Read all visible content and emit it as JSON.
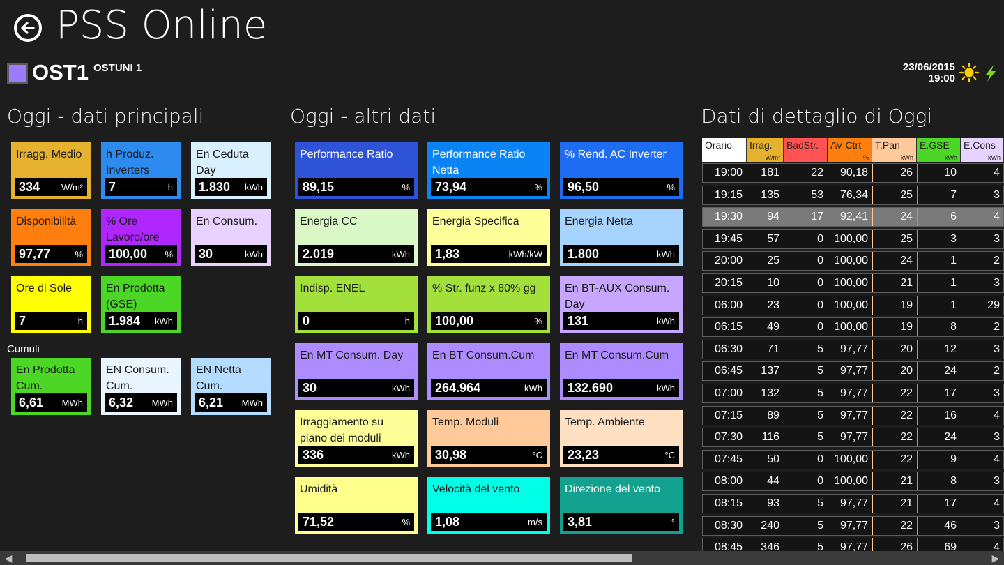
{
  "app": {
    "title": "PSS Online"
  },
  "site": {
    "code": "OST1",
    "name": "OSTUNI 1",
    "color": "#9b7cff"
  },
  "status": {
    "date": "23/06/2015",
    "time": "19:00",
    "weather_icon": "sun-icon",
    "power_icon": "bolt-icon"
  },
  "sections": {
    "main": "Oggi - dati principali",
    "other": "Oggi - altri dati",
    "detail": "Dati di dettaglio di Oggi",
    "cumuli": "Cumuli"
  },
  "main_tiles": [
    {
      "label": "Irragg. Medio",
      "value": "334",
      "unit": "W/m²",
      "color": "#e6b12e"
    },
    {
      "label": "h Produz. Inverters",
      "value": "7",
      "unit": "h",
      "color": "#2d8bf0"
    },
    {
      "label": "En Ceduta Day",
      "value": "1.830",
      "unit": "kWh",
      "color": "#d9f0ff"
    },
    {
      "label": "Disponibilità",
      "value": "97,77",
      "unit": "%",
      "color": "#ff7f0e"
    },
    {
      "label": "% Ore Lavoro/ore",
      "value": "100,00",
      "unit": "%",
      "color": "#b026ff"
    },
    {
      "label": "En Consum.",
      "value": "30",
      "unit": "kWh",
      "color": "#e8d2ff"
    },
    {
      "label": "Ore di Sole",
      "value": "7",
      "unit": "h",
      "color": "#ffff00"
    },
    {
      "label": "En Prodotta (GSE)",
      "value": "1.984",
      "unit": "kWh",
      "color": "#4cd626"
    }
  ],
  "cumuli_tiles": [
    {
      "label": "En Prodotta Cum.",
      "value": "6,61",
      "unit": "MWh",
      "color": "#4cd626"
    },
    {
      "label": "EN Consum. Cum.",
      "value": "6,32",
      "unit": "MWh",
      "color": "#e9f6ff"
    },
    {
      "label": "EN Netta Cum.",
      "value": "6,21",
      "unit": "MWh",
      "color": "#b3dcff"
    }
  ],
  "other_tiles": [
    {
      "label": "Performance Ratio",
      "value": "89,15",
      "unit": "%",
      "color": "#2f53d6",
      "dark": true
    },
    {
      "label": "Performance Ratio Netta",
      "value": "73,94",
      "unit": "%",
      "color": "#0a84f5",
      "dark": true
    },
    {
      "label": "% Rend. AC Inverter",
      "value": "96,50",
      "unit": "%",
      "color": "#1e6cf2",
      "dark": true
    },
    {
      "label": "Energia CC",
      "value": "2.019",
      "unit": "kWh",
      "color": "#daf7c6"
    },
    {
      "label": "Energia Specifica",
      "value": "1,83",
      "unit": "kWh/kW",
      "color": "#ffff99"
    },
    {
      "label": "Energia Netta",
      "value": "1.800",
      "unit": "kWh",
      "color": "#a7d4ff"
    },
    {
      "label": "Indisp. ENEL",
      "value": "0",
      "unit": "h",
      "color": "#a3e03c"
    },
    {
      "label": "% Str. funz x 80% gg",
      "value": "100,00",
      "unit": "%",
      "color": "#a3e03c"
    },
    {
      "label": "En BT-AUX Consum. Day",
      "value": "131",
      "unit": "kWh",
      "color": "#c7a6ff"
    },
    {
      "label": "En MT Consum. Day",
      "value": "30",
      "unit": "kWh",
      "color": "#ad8cff"
    },
    {
      "label": "En BT Consum.Cum",
      "value": "264.964",
      "unit": "kWh",
      "color": "#ad8cff"
    },
    {
      "label": "En MT Consum.Cum",
      "value": "132.690",
      "unit": "kWh",
      "color": "#ad8cff"
    },
    {
      "label": "Irraggiamento su piano dei moduli",
      "value": "336",
      "unit": "kWh",
      "color": "#ffff99"
    },
    {
      "label": "Temp. Moduli",
      "value": "30,98",
      "unit": "°C",
      "color": "#ffc999"
    },
    {
      "label": "Temp. Ambiente",
      "value": "23,23",
      "unit": "°C",
      "color": "#ffe0c2"
    },
    {
      "label": "Umidità",
      "value": "71,52",
      "unit": "%",
      "color": "#ffff8c"
    },
    {
      "label": "Velocità del vento",
      "value": "1,08",
      "unit": "m/s",
      "color": "#00ffe6"
    },
    {
      "label": "Direzione del vento",
      "value": "3,81",
      "unit": "°",
      "color": "#12a18e",
      "dark": true
    }
  ],
  "detail_table": {
    "columns": [
      {
        "name": "Orario",
        "unit": "",
        "color": "#ffffff",
        "border": "#ffffff"
      },
      {
        "name": "Irrag.",
        "unit": "W/m²",
        "color": "#e6b12e",
        "border": "#e6b12e"
      },
      {
        "name": "BadStr.",
        "unit": "",
        "color": "#ff5252",
        "border": "#ff5252"
      },
      {
        "name": "AV Ctrt",
        "unit": "%",
        "color": "#ff7f0e",
        "border": "#ff7f0e"
      },
      {
        "name": "T.Pan",
        "unit": "kWh",
        "color": "#ffc999",
        "border": "#ffc999"
      },
      {
        "name": "E.GSE",
        "unit": "kWh",
        "color": "#4cd626",
        "border": "#4cd626"
      },
      {
        "name": "E.Cons",
        "unit": "kWh",
        "color": "#e8d2ff",
        "border": "#e8d2ff"
      }
    ],
    "rows": [
      [
        "19:00",
        "181",
        "22",
        "90,18",
        "26",
        "10",
        "4"
      ],
      [
        "19:15",
        "135",
        "53",
        "76,34",
        "25",
        "7",
        "3"
      ],
      [
        "19:30",
        "94",
        "17",
        "92,41",
        "24",
        "6",
        "4"
      ],
      [
        "19:45",
        "57",
        "0",
        "100,00",
        "25",
        "3",
        "3"
      ],
      [
        "20:00",
        "25",
        "0",
        "100,00",
        "24",
        "1",
        "2"
      ],
      [
        "20:15",
        "10",
        "0",
        "100,00",
        "21",
        "1",
        "3"
      ],
      [
        "06:00",
        "23",
        "0",
        "100,00",
        "19",
        "1",
        "29"
      ],
      [
        "06:15",
        "49",
        "0",
        "100,00",
        "19",
        "8",
        "2"
      ],
      [
        "06:30",
        "71",
        "5",
        "97,77",
        "20",
        "12",
        "3"
      ],
      [
        "06:45",
        "137",
        "5",
        "97,77",
        "20",
        "24",
        "2"
      ],
      [
        "07:00",
        "132",
        "5",
        "97,77",
        "22",
        "17",
        "3"
      ],
      [
        "07:15",
        "89",
        "5",
        "97,77",
        "22",
        "16",
        "4"
      ],
      [
        "07:30",
        "116",
        "5",
        "97,77",
        "22",
        "24",
        "3"
      ],
      [
        "07:45",
        "50",
        "0",
        "100,00",
        "22",
        "9",
        "4"
      ],
      [
        "08:00",
        "44",
        "0",
        "100,00",
        "21",
        "8",
        "3"
      ],
      [
        "08:15",
        "93",
        "5",
        "97,77",
        "21",
        "17",
        "4"
      ],
      [
        "08:30",
        "240",
        "5",
        "97,77",
        "22",
        "46",
        "3"
      ],
      [
        "08:45",
        "346",
        "5",
        "97,77",
        "26",
        "69",
        "4"
      ]
    ],
    "selected_row": 2
  }
}
